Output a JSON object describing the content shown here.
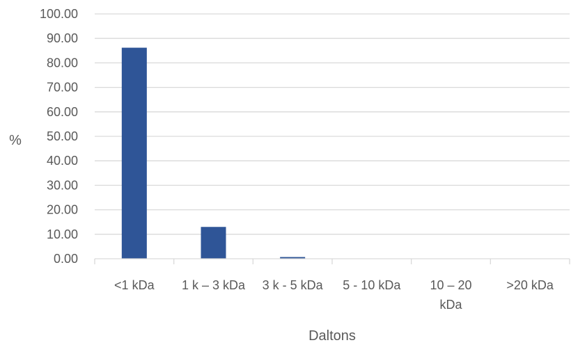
{
  "chart_data": {
    "type": "bar",
    "categories": [
      [
        "<1 kDa"
      ],
      [
        "1 k – 3 kDa"
      ],
      [
        "3 k - 5 kDa"
      ],
      [
        "5 - 10 kDa"
      ],
      [
        "10 – 20",
        "kDa"
      ],
      [
        ">20 kDa"
      ]
    ],
    "values": [
      86.2,
      13.0,
      0.7,
      0.0,
      0.0,
      0.0
    ],
    "title": "",
    "xlabel": "Daltons",
    "ylabel": "%",
    "ylim": [
      0,
      100
    ],
    "yticks": [
      "0.00",
      "10.00",
      "20.00",
      "30.00",
      "40.00",
      "50.00",
      "60.00",
      "70.00",
      "80.00",
      "90.00",
      "100.00"
    ],
    "grid": true,
    "legend": "none",
    "bar_color": "#2F5597",
    "grid_color": "#D9D9D9",
    "text_color": "#595959"
  }
}
